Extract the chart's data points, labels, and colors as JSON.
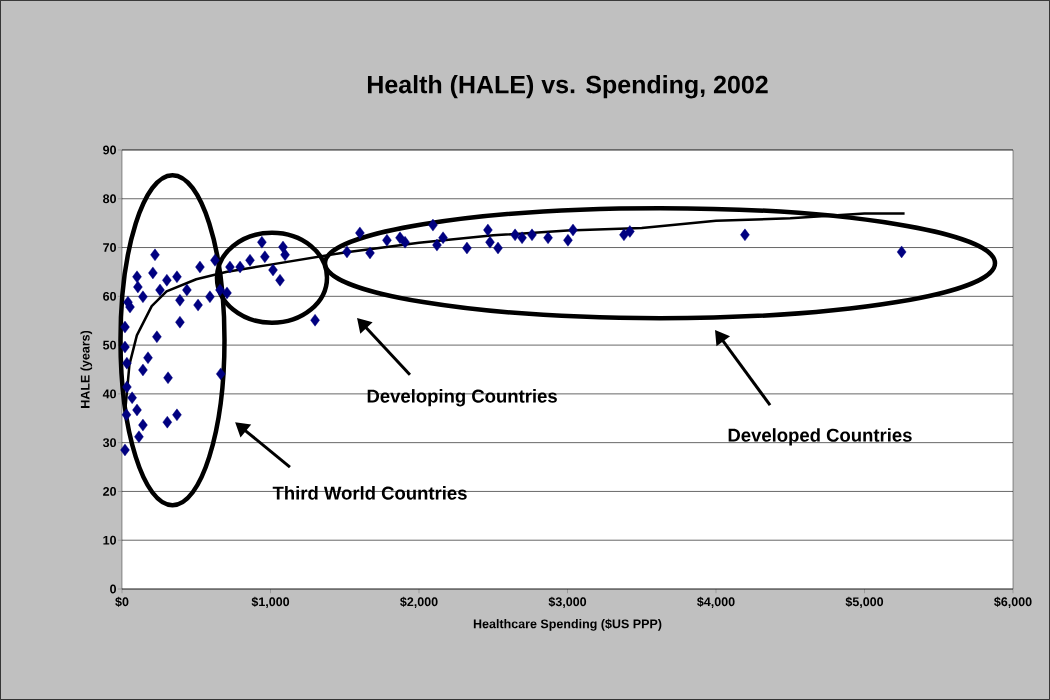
{
  "chart_data": {
    "type": "scatter",
    "title": "Health (HALE) vs. Spending, 2002",
    "xlabel": "Healthcare Spending ($US PPP)",
    "ylabel": "HALE (years)",
    "xlim": [
      0,
      6000
    ],
    "ylim": [
      0,
      90
    ],
    "xticks": [
      {
        "value": 0,
        "label": "$0"
      },
      {
        "value": 1000,
        "label": "$1,000"
      },
      {
        "value": 2000,
        "label": "$2,000"
      },
      {
        "value": 3000,
        "label": "$3,000"
      },
      {
        "value": 4000,
        "label": "$4,000"
      },
      {
        "value": 5000,
        "label": "$5,000"
      },
      {
        "value": 6000,
        "label": "$6,000"
      }
    ],
    "yticks": [
      0,
      10,
      20,
      30,
      40,
      50,
      60,
      70,
      80,
      90
    ],
    "grid": "y",
    "marker": "diamond",
    "annotations": [
      "Third World Countries",
      "Developing Countries",
      "Developed Countries"
    ],
    "series": [
      {
        "type": "scatter",
        "color": "#000080",
        "x": [
          20,
          1300,
          665,
          310,
          305,
          370,
          222,
          390,
          235,
          175,
          141,
          114,
          141,
          68,
          30,
          101,
          20,
          20,
          33,
          33,
          54,
          40,
          101,
          107,
          141,
          208,
          256,
          302,
          370,
          390,
          437,
          512,
          525,
          592,
          626,
          660,
          707,
          727,
          795,
          862,
          942,
          962,
          1017,
          1064,
          1084,
          1098,
          1515,
          1602,
          1670,
          1784,
          1872,
          1906,
          2094,
          2121,
          2162,
          2323,
          2464,
          2478,
          2532,
          2647,
          2694,
          2761,
          2869,
          3003,
          3037,
          3380,
          3420,
          4195,
          5250
        ],
        "values": [
          28.5,
          55.1,
          44.1,
          43.3,
          34.2,
          35.7,
          68.5,
          54.7,
          51.7,
          47.4,
          44.9,
          31.2,
          33.6,
          39.2,
          35.7,
          36.7,
          53.7,
          49.6,
          46.3,
          41.4,
          57.8,
          58.8,
          64,
          61.9,
          59.9,
          64.8,
          61.3,
          63.3,
          64,
          59.2,
          61.3,
          58.2,
          66,
          59.9,
          67.4,
          61.3,
          60.7,
          66,
          66,
          67.4,
          71.1,
          68.1,
          65.4,
          63.3,
          70.1,
          68.5,
          69.1,
          73,
          68.9,
          71.5,
          72,
          71.1,
          74.6,
          70.5,
          72,
          69.9,
          73.6,
          71.1,
          69.9,
          72.6,
          72,
          72.6,
          72,
          71.5,
          73.6,
          72.6,
          73.3,
          72.6,
          69.1
        ]
      },
      {
        "type": "line",
        "color": "#000000",
        "marker": "none",
        "x": [
          20,
          50,
          100,
          200,
          300,
          500,
          700,
          1000,
          1500,
          2000,
          2500,
          3000,
          3500,
          4000,
          4500,
          5000,
          5270
        ],
        "values": [
          36,
          46,
          52,
          58,
          61,
          63.5,
          65,
          66.5,
          69,
          71,
          72.5,
          73.5,
          74,
          75.5,
          76,
          77,
          77
        ]
      }
    ]
  }
}
